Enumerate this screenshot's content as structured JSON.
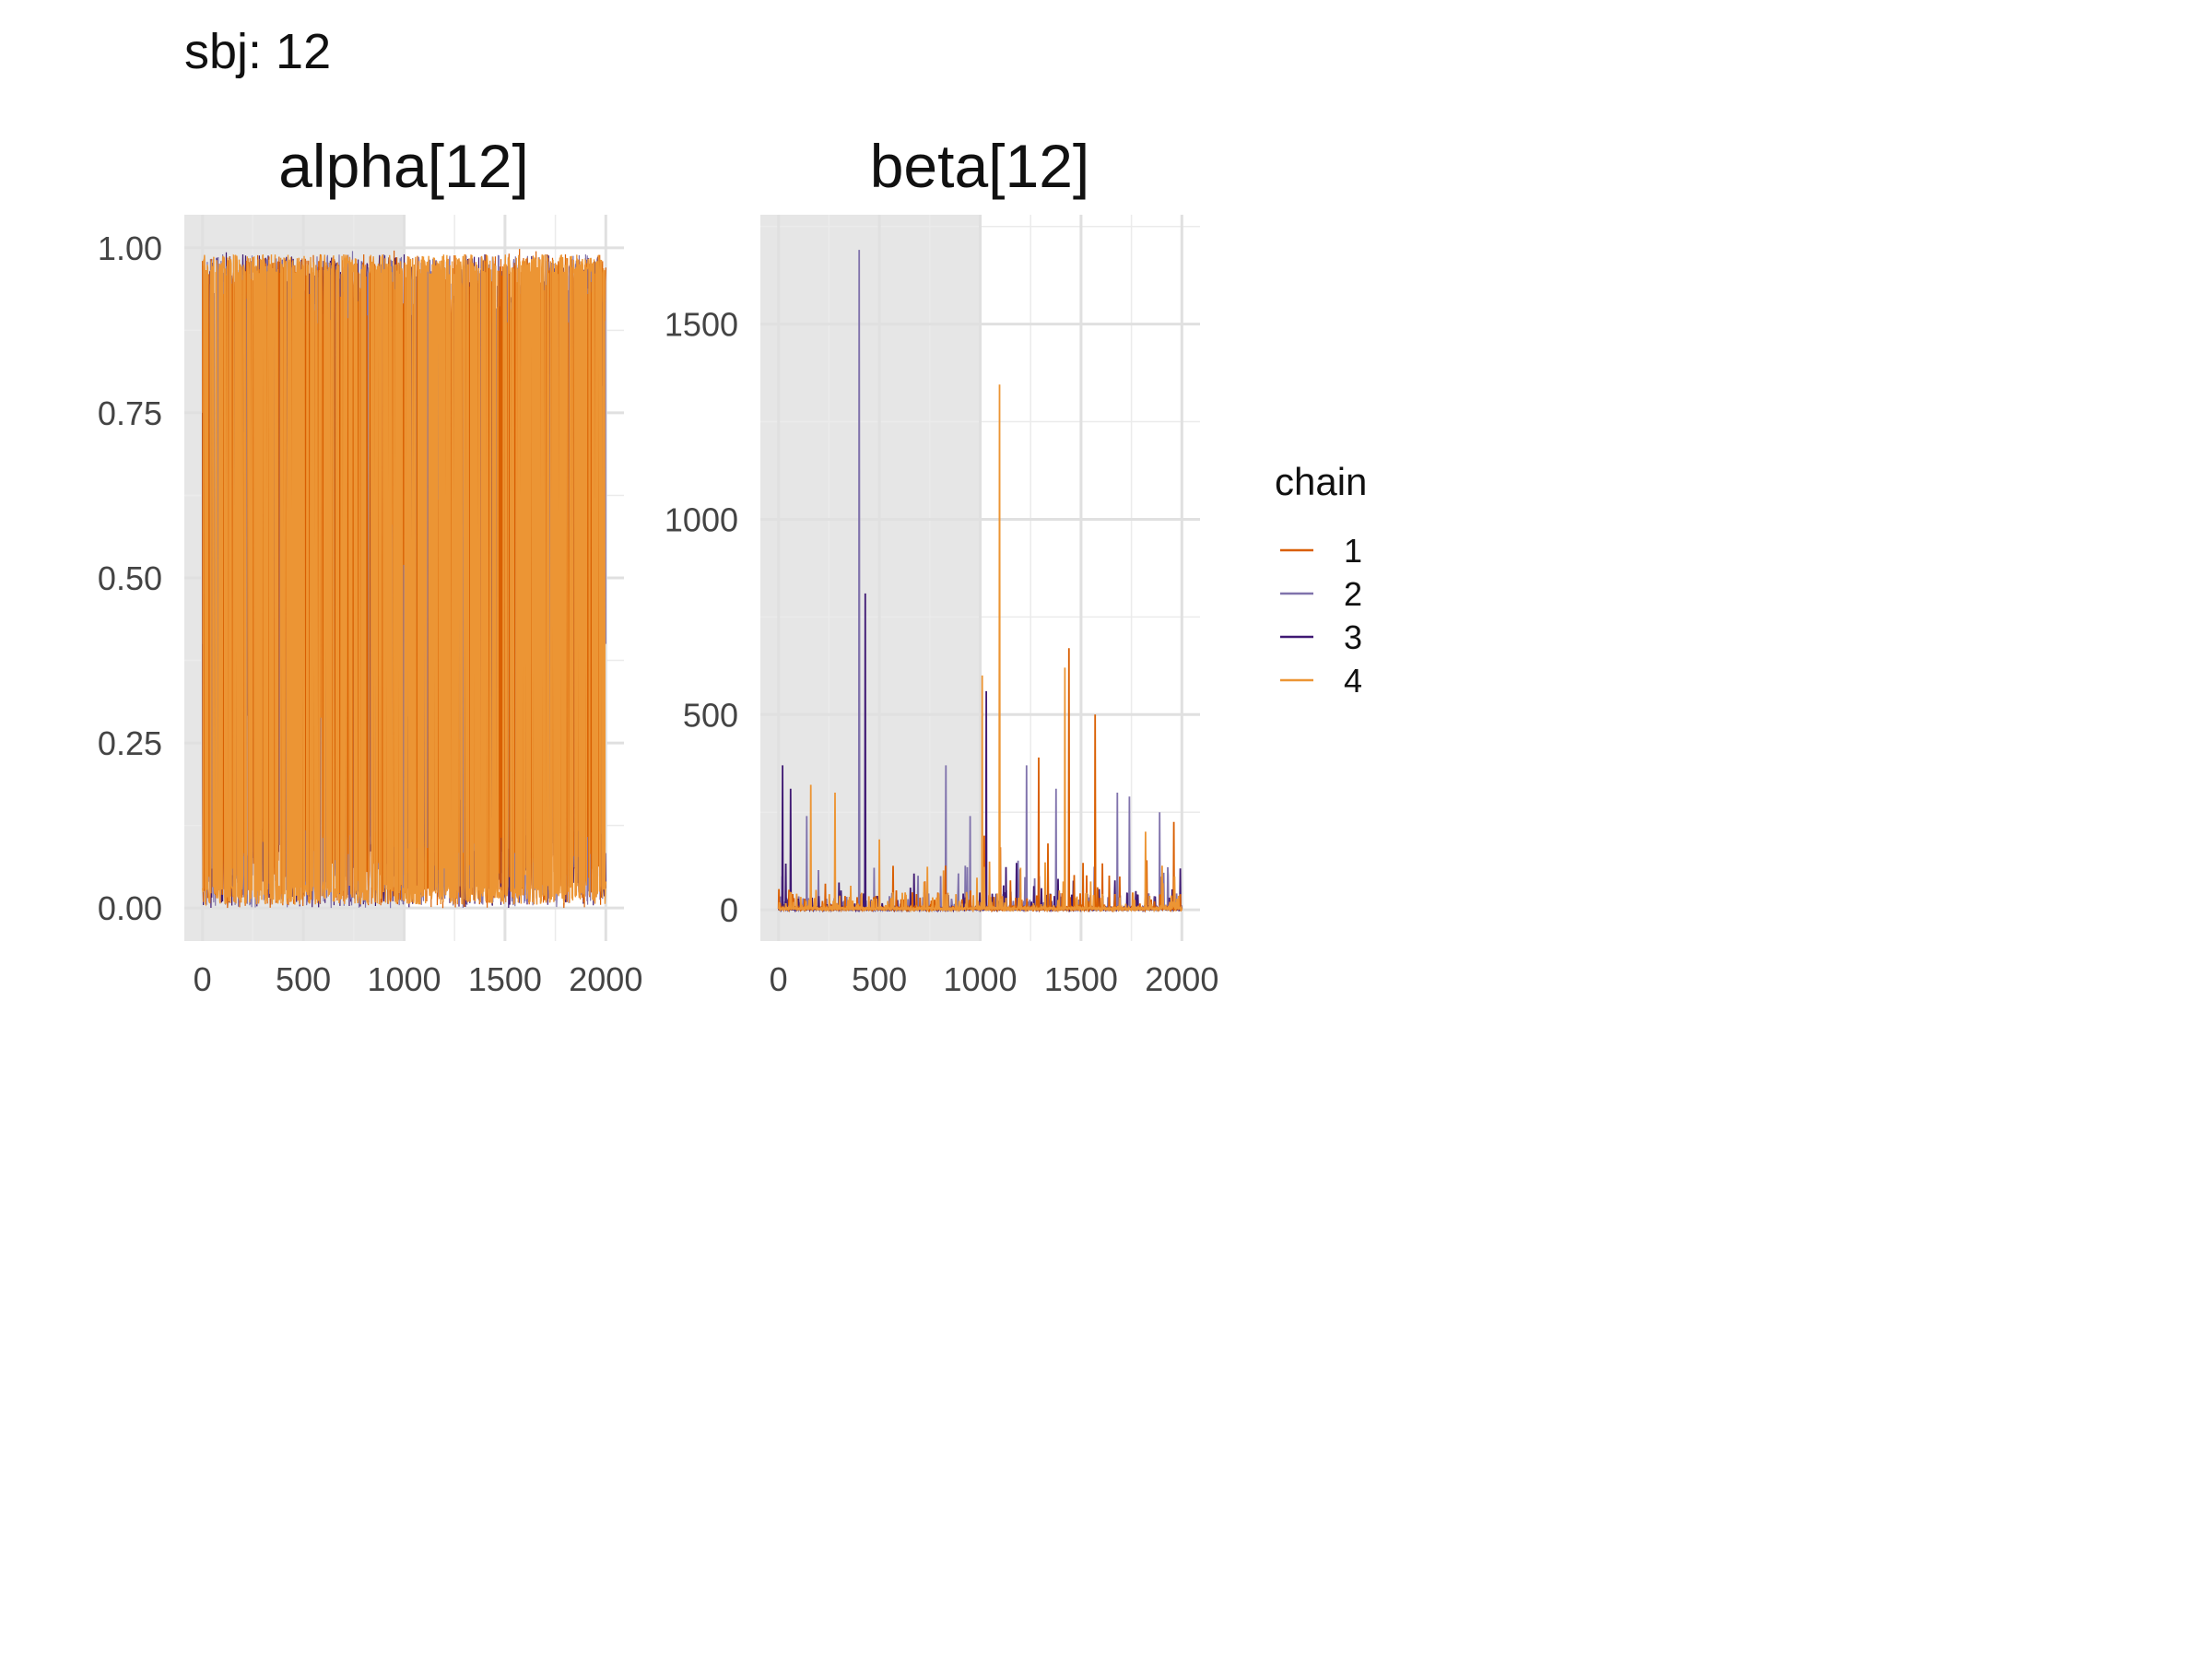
{
  "figure": {
    "title": "sbj: 12"
  },
  "legend": {
    "title": "chain",
    "items": [
      {
        "label": "1",
        "color": "#d95f02"
      },
      {
        "label": "2",
        "color": "#8073ac"
      },
      {
        "label": "3",
        "color": "#3f1973"
      },
      {
        "label": "4",
        "color": "#ec9534"
      }
    ]
  },
  "chart_data": [
    {
      "type": "line",
      "title": "alpha[12]",
      "xlabel": "",
      "ylabel": "",
      "xlim": [
        -90,
        2090
      ],
      "ylim": [
        -0.05,
        1.05
      ],
      "x_ticks": [
        0,
        500,
        1000,
        1500,
        2000
      ],
      "x_tick_labels": [
        "0",
        "500",
        "1000",
        "1500",
        "2000"
      ],
      "y_ticks": [
        0.0,
        0.25,
        0.5,
        0.75,
        1.0
      ],
      "y_tick_labels": [
        "0.00",
        "0.25",
        "0.50",
        "0.75",
        "1.00"
      ],
      "warmup_shaded_range": [
        -90,
        1000
      ],
      "grid": true,
      "series_names": [
        "1",
        "2",
        "3",
        "4"
      ],
      "description": "trace of 2000 iterations per chain; values span nearly the full 0 to 1 range, dense oscillation",
      "sampled_traces": {
        "x": [
          0,
          100,
          200,
          300,
          400,
          500,
          600,
          700,
          800,
          900,
          1000,
          1100,
          1200,
          1300,
          1400,
          1500,
          1600,
          1700,
          1800,
          1900,
          2000
        ],
        "1": [
          0.98,
          0.02,
          0.95,
          0.1,
          0.97,
          0.05,
          0.92,
          0.01,
          0.99,
          0.2,
          0.96,
          0.03,
          0.9,
          0.08,
          0.98,
          0.02,
          0.94,
          0.15,
          0.99,
          0.04,
          0.97
        ],
        "2": [
          0.4,
          0.99,
          0.02,
          0.98,
          0.06,
          0.95,
          0.01,
          0.97,
          0.03,
          0.99,
          0.05,
          0.96,
          0.02,
          0.99,
          0.07,
          0.93,
          0.01,
          0.98,
          0.04,
          0.99,
          0.4
        ],
        "3": [
          0.75,
          0.01,
          0.99,
          0.04,
          0.97,
          0.02,
          0.98,
          0.06,
          0.95,
          0.01,
          0.99,
          0.03,
          0.97,
          0.05,
          0.99,
          0.68,
          0.02,
          0.98,
          0.01,
          0.97,
          0.03
        ],
        "4": [
          0.03,
          0.98,
          0.05,
          0.99,
          0.01,
          0.97,
          0.04,
          0.99,
          0.02,
          0.96,
          0.01,
          0.98,
          0.06,
          0.99,
          0.03,
          0.97,
          0.05,
          0.99,
          0.02,
          0.98,
          0.04
        ]
      }
    },
    {
      "type": "line",
      "title": "beta[12]",
      "xlabel": "",
      "ylabel": "",
      "xlim": [
        -90,
        2090
      ],
      "ylim": [
        -80,
        1780
      ],
      "x_ticks": [
        0,
        500,
        1000,
        1500,
        2000
      ],
      "x_tick_labels": [
        "0",
        "500",
        "1000",
        "1500",
        "2000"
      ],
      "y_ticks": [
        0,
        500,
        1000,
        1500
      ],
      "y_tick_labels": [
        "0",
        "500",
        "1000",
        "1500"
      ],
      "warmup_shaded_range": [
        -90,
        1000
      ],
      "grid": true,
      "series_names": [
        "1",
        "2",
        "3",
        "4"
      ],
      "description": "trace of 2000 iterations per chain; values mostly near 0 with occasional spikes",
      "spikes": {
        "1": [
          [
            1290,
            390
          ],
          [
            1335,
            170
          ],
          [
            1440,
            670
          ],
          [
            1570,
            500
          ],
          [
            1960,
            225
          ],
          [
            1020,
            190
          ],
          [
            1100,
            160
          ]
        ],
        "2": [
          [
            400,
            1690
          ],
          [
            1230,
            370
          ],
          [
            1375,
            310
          ],
          [
            1680,
            300
          ],
          [
            1890,
            250
          ],
          [
            1740,
            290
          ],
          [
            830,
            370
          ],
          [
            950,
            240
          ],
          [
            140,
            240
          ]
        ],
        "3": [
          [
            20,
            370
          ],
          [
            60,
            310
          ],
          [
            430,
            810
          ],
          [
            1030,
            560
          ],
          [
            300,
            70
          ],
          [
            1180,
            120
          ]
        ],
        "4": [
          [
            160,
            320
          ],
          [
            280,
            300
          ],
          [
            1010,
            600
          ],
          [
            1095,
            1345
          ],
          [
            1420,
            620
          ],
          [
            500,
            180
          ],
          [
            1820,
            200
          ]
        ]
      }
    }
  ]
}
